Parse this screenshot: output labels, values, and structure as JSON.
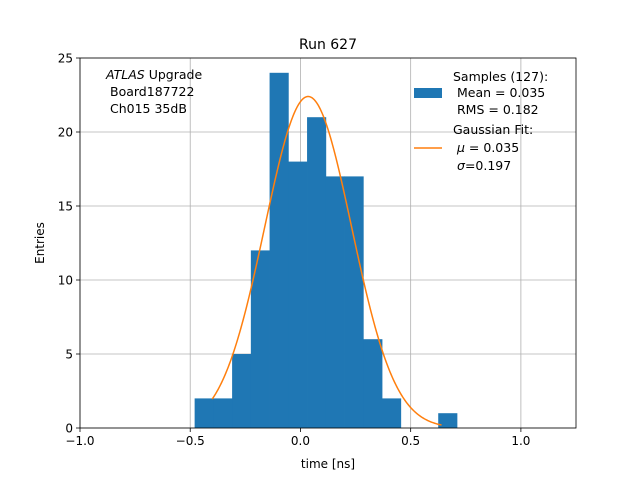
{
  "chart_data": {
    "type": "bar",
    "title": "Run 627",
    "xlabel": "time [ns]",
    "ylabel": "Entries",
    "xlim": [
      -1.0,
      1.25
    ],
    "ylim": [
      0,
      25
    ],
    "x_ticks": [
      -1.0,
      -0.5,
      0.0,
      0.5,
      1.0
    ],
    "x_tick_labels": [
      "−1.0",
      "−0.5",
      "0.0",
      "0.5",
      "1.0"
    ],
    "y_ticks": [
      0,
      5,
      10,
      15,
      20,
      25
    ],
    "y_tick_labels": [
      "0",
      "5",
      "10",
      "15",
      "20",
      "25"
    ],
    "grid": true,
    "legend_position": "top-right",
    "bin_edges": [
      -0.48,
      -0.395,
      -0.31,
      -0.225,
      -0.14,
      -0.055,
      0.03,
      0.115,
      0.2,
      0.285,
      0.37,
      0.455,
      0.54,
      0.625,
      0.71
    ],
    "counts": [
      2,
      2,
      5,
      12,
      24,
      18,
      21,
      17,
      17,
      6,
      2,
      0,
      0,
      1
    ],
    "bar_color": "#1f77b4",
    "fit": {
      "mu": 0.035,
      "sigma": 0.197,
      "amplitude": 22.4,
      "x_range": [
        -0.4,
        0.64
      ],
      "color": "#ff7f0e"
    },
    "annotation": {
      "line1_italic": "ATLAS",
      "line1_rest": " Upgrade",
      "line2": "Board187722",
      "line3": "Ch015 35dB"
    },
    "legend": {
      "samples_title": "Samples (127):",
      "samples_mean": "Mean = 0.035",
      "samples_rms": "RMS = 0.182",
      "fit_title": "Gaussian Fit:",
      "fit_mu_sym": "μ",
      "fit_mu_val": " = 0.035",
      "fit_sigma_sym": "σ",
      "fit_sigma_val": "=0.197"
    }
  }
}
